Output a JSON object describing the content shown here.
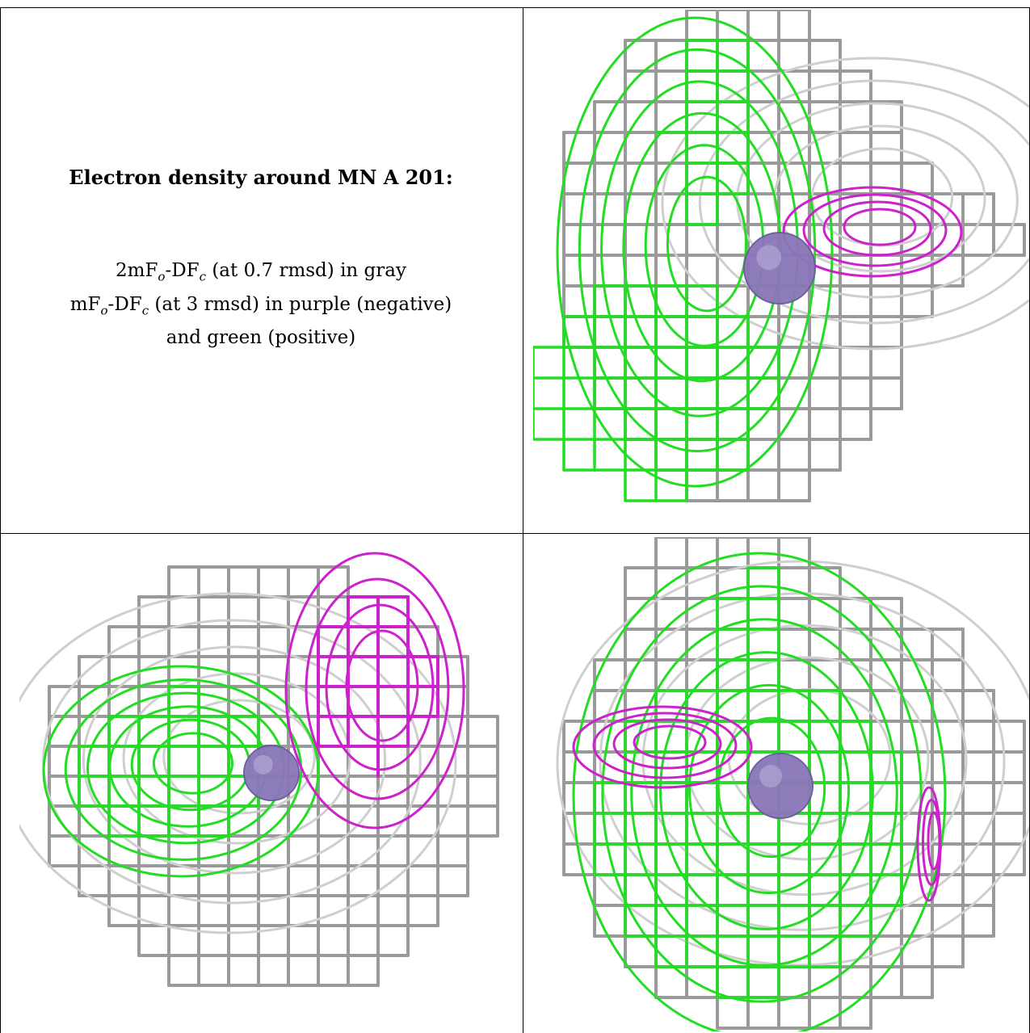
{
  "caption": {
    "title": "Electron density around MN A 201:",
    "line1_a": "2mF",
    "line1_sub1": "o",
    "line1_b": "-DF",
    "line1_sub2": "c",
    "line1_c": " (at 0.7 rmsd) in gray",
    "line2_a": "mF",
    "line2_sub1": "o",
    "line2_b": "-DF",
    "line2_sub2": "c",
    "line2_c": " (at 3 rmsd) in purple (negative)",
    "line3": "and green (positive)"
  },
  "colors": {
    "gray_mesh": "#9a9a9a",
    "gray_mesh_light": "#cfcfcf",
    "gray_mesh_dark": "#6a6a6a",
    "positive_green": "#22dd22",
    "negative_purple": "#cc22cc",
    "ion_sphere": "#8a76b8"
  },
  "panels": [
    {
      "id": "top-right",
      "ion": "MN A 201"
    },
    {
      "id": "bottom-left",
      "ion": "MN A 201"
    },
    {
      "id": "bottom-right",
      "ion": "MN A 201"
    }
  ]
}
